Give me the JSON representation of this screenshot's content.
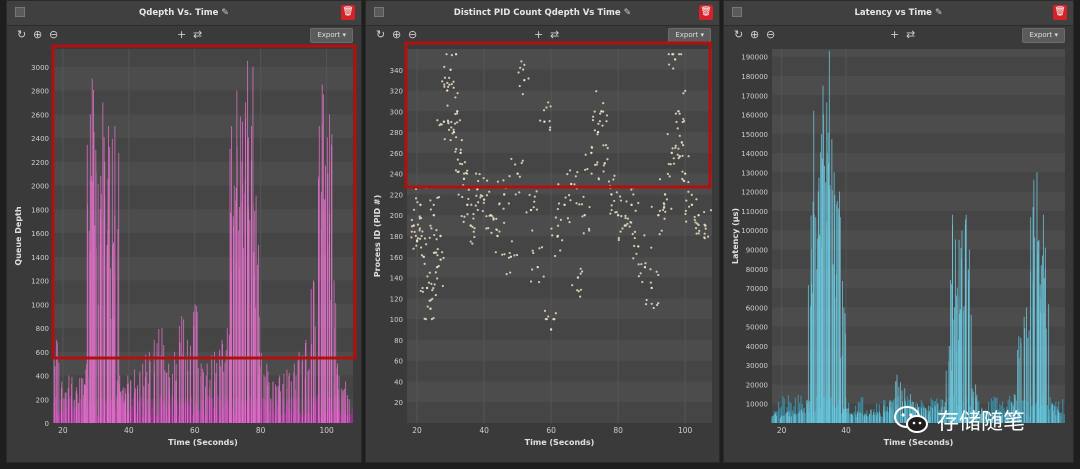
{
  "panels": [
    {
      "title": "Qdepth Vs. Time",
      "export_label": "Export",
      "chart_data": {
        "type": "bar",
        "xlabel": "Time (Seconds)",
        "ylabel": "Queue Depth",
        "xlim": [
          17,
          108
        ],
        "ylim": [
          0,
          3150
        ],
        "xticks": [
          "20",
          "40",
          "60",
          "80",
          "100"
        ],
        "xtick_values": [
          20,
          40,
          60,
          80,
          100
        ],
        "yticks": [
          "0",
          "200",
          "400",
          "600",
          "800",
          "1000",
          "1200",
          "1400",
          "1600",
          "1800",
          "2000",
          "2200",
          "2400",
          "2600",
          "2800",
          "3000"
        ],
        "ytick_values": [
          0,
          200,
          400,
          600,
          800,
          1000,
          1200,
          1400,
          1600,
          1800,
          2000,
          2200,
          2400,
          2600,
          2800,
          3000
        ],
        "color": "#e070c8",
        "base_color": "#a0309a",
        "x": [
          18,
          20,
          22,
          24,
          26,
          27,
          28,
          29,
          30,
          31,
          32,
          33,
          34,
          35,
          36,
          37,
          38,
          39,
          40,
          42,
          44,
          46,
          48,
          50,
          52,
          54,
          56,
          58,
          60,
          62,
          64,
          66,
          68,
          70,
          71,
          72,
          73,
          74,
          75,
          76,
          77,
          78,
          79,
          80,
          82,
          84,
          86,
          88,
          90,
          92,
          94,
          96,
          98,
          99,
          100,
          101,
          102,
          103,
          104,
          106
        ],
        "values": [
          700,
          350,
          400,
          300,
          380,
          500,
          2600,
          2900,
          2300,
          1800,
          2700,
          2200,
          2500,
          1500,
          2500,
          400,
          300,
          250,
          400,
          450,
          500,
          600,
          700,
          800,
          500,
          600,
          900,
          700,
          1000,
          500,
          500,
          600,
          700,
          800,
          2500,
          2000,
          2800,
          2200,
          2700,
          3050,
          2500,
          3000,
          1500,
          600,
          500,
          350,
          400,
          450,
          500,
          600,
          700,
          1200,
          2500,
          2850,
          2100,
          2600,
          1200,
          500,
          400,
          350
        ]
      },
      "annotation": "highlight-box"
    },
    {
      "title": "Distinct PID Count Qdepth Vs Time",
      "export_label": "Export",
      "chart_data": {
        "type": "scatter",
        "xlabel": "Time (Seconds)",
        "ylabel": "Process ID (PID #)",
        "xlim": [
          17,
          108
        ],
        "ylim": [
          0,
          360
        ],
        "xticks": [
          "20",
          "40",
          "60",
          "80",
          "100"
        ],
        "xtick_values": [
          20,
          40,
          60,
          80,
          100
        ],
        "yticks": [
          "20",
          "40",
          "60",
          "80",
          "100",
          "120",
          "140",
          "160",
          "180",
          "200",
          "220",
          "240",
          "260",
          "280",
          "300",
          "320",
          "340"
        ],
        "ytick_values": [
          20,
          40,
          60,
          80,
          100,
          120,
          140,
          160,
          180,
          200,
          220,
          240,
          260,
          280,
          300,
          320,
          340
        ],
        "color": "#ece1c4",
        "points": [
          [
            19,
            190
          ],
          [
            20,
            175
          ],
          [
            21,
            210
          ],
          [
            22,
            160
          ],
          [
            23,
            130
          ],
          [
            24,
            110
          ],
          [
            25,
            200
          ],
          [
            26,
            150
          ],
          [
            27,
            180
          ],
          [
            28,
            290
          ],
          [
            29,
            320
          ],
          [
            30,
            340
          ],
          [
            31,
            280
          ],
          [
            32,
            300
          ],
          [
            33,
            260
          ],
          [
            34,
            235
          ],
          [
            35,
            210
          ],
          [
            36,
            190
          ],
          [
            38,
            225
          ],
          [
            40,
            215
          ],
          [
            42,
            200
          ],
          [
            44,
            180
          ],
          [
            46,
            220
          ],
          [
            48,
            160
          ],
          [
            50,
            240
          ],
          [
            52,
            330
          ],
          [
            54,
            205
          ],
          [
            56,
            150
          ],
          [
            58,
            290
          ],
          [
            60,
            90
          ],
          [
            62,
            180
          ],
          [
            64,
            210
          ],
          [
            66,
            230
          ],
          [
            68,
            140
          ],
          [
            70,
            200
          ],
          [
            72,
            260
          ],
          [
            74,
            280
          ],
          [
            75,
            300
          ],
          [
            76,
            250
          ],
          [
            78,
            220
          ],
          [
            80,
            200
          ],
          [
            82,
            190
          ],
          [
            84,
            210
          ],
          [
            86,
            170
          ],
          [
            88,
            150
          ],
          [
            90,
            130
          ],
          [
            92,
            200
          ],
          [
            94,
            220
          ],
          [
            96,
            260
          ],
          [
            97,
            350
          ],
          [
            98,
            300
          ],
          [
            99,
            270
          ],
          [
            100,
            240
          ],
          [
            102,
            210
          ],
          [
            104,
            200
          ],
          [
            106,
            190
          ]
        ]
      },
      "annotation": "highlight-box"
    },
    {
      "title": "Latency vs Time",
      "export_label": "Export",
      "chart_data": {
        "type": "bar",
        "xlabel": "Time (Seconds)",
        "ylabel": "Latency (µs)",
        "xlim": [
          17,
          108
        ],
        "ylim": [
          0,
          194000
        ],
        "xticks": [
          "20",
          "40"
        ],
        "xtick_values": [
          20,
          40
        ],
        "yticks": [
          "10000",
          "20000",
          "30000",
          "40000",
          "50000",
          "60000",
          "70000",
          "80000",
          "90000",
          "100000",
          "110000",
          "120000",
          "130000",
          "140000",
          "150000",
          "160000",
          "170000",
          "180000",
          "190000"
        ],
        "ytick_values": [
          10000,
          20000,
          30000,
          40000,
          50000,
          60000,
          70000,
          80000,
          90000,
          100000,
          110000,
          120000,
          130000,
          140000,
          150000,
          160000,
          170000,
          180000,
          190000
        ],
        "color": "#6cc8de",
        "base_color": "#3d8fa5",
        "x": [
          18,
          20,
          22,
          24,
          26,
          28,
          29,
          30,
          31,
          32,
          33,
          34,
          35,
          36,
          37,
          38,
          39,
          40,
          42,
          44,
          46,
          48,
          50,
          52,
          54,
          56,
          58,
          60,
          62,
          64,
          66,
          68,
          70,
          72,
          73,
          74,
          75,
          76,
          77,
          78,
          80,
          82,
          84,
          86,
          88,
          90,
          92,
          94,
          96,
          98,
          99,
          100,
          101,
          102,
          104,
          106
        ],
        "values": [
          5000,
          4000,
          6000,
          5000,
          7000,
          12000,
          90000,
          162000,
          120000,
          150000,
          175000,
          140000,
          193000,
          130000,
          115000,
          120000,
          60000,
          8000,
          5000,
          6000,
          5000,
          7000,
          6000,
          9000,
          12000,
          25000,
          18000,
          15000,
          10000,
          8000,
          9000,
          10000,
          12000,
          40000,
          108000,
          60000,
          95000,
          85000,
          108000,
          90000,
          20000,
          8000,
          6000,
          5000,
          6000,
          7000,
          15000,
          45000,
          60000,
          112000,
          130000,
          95000,
          108000,
          80000,
          10000,
          7000
        ]
      }
    }
  ],
  "watermark": {
    "text": "存储随笔",
    "icon": "wechat-icon"
  },
  "toolbar_icons": [
    "reset-icon",
    "zoom-in-icon",
    "zoom-out-icon",
    "crosshair-icon",
    "swap-icon"
  ],
  "annotation_color": "#b30f0f"
}
